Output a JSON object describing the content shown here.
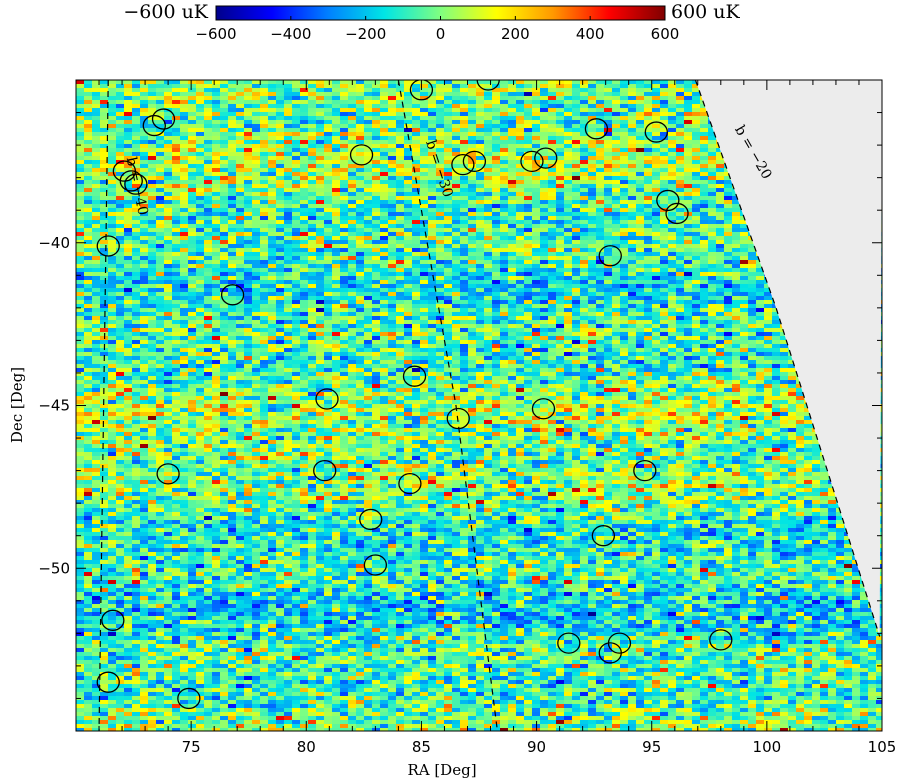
{
  "colorbar": {
    "min_label": "−600 uK",
    "max_label": "600 uK",
    "range": [
      -600,
      600
    ],
    "ticks": [
      "−600",
      "−400",
      "−200",
      "0",
      "200",
      "400",
      "600"
    ],
    "colors": [
      "#00008c",
      "#0000ff",
      "#0080ff",
      "#00e5e5",
      "#80ff80",
      "#ffff00",
      "#ff9900",
      "#ff0000",
      "#800000"
    ]
  },
  "chart_data": {
    "type": "heatmap",
    "title": "",
    "xlabel": "RA [Deg]",
    "ylabel": "Dec [Deg]",
    "xlim": [
      70.0,
      105.0
    ],
    "ylim": [
      -55.0,
      -35.0
    ],
    "x_ticks": [
      75,
      80,
      85,
      90,
      95,
      100,
      105
    ],
    "y_ticks": [
      -40,
      -45,
      -50
    ],
    "x_tick_labels": [
      "75",
      "80",
      "85",
      "90",
      "95",
      "100",
      "105"
    ],
    "y_tick_labels": [
      "−40",
      "−45",
      "−50"
    ],
    "masked_region_color": "#ececec",
    "galactic_latitude_lines": [
      {
        "label": "b = −40",
        "points": [
          [
            71.4,
            -35.0
          ],
          [
            71.1,
            -50.0
          ],
          [
            71.0,
            -55.0
          ]
        ]
      },
      {
        "label": "b = −30",
        "points": [
          [
            84.0,
            -35.0
          ],
          [
            86.5,
            -45.0
          ],
          [
            88.3,
            -55.0
          ]
        ]
      },
      {
        "label": "b = −20",
        "points": [
          [
            96.9,
            -35.0
          ],
          [
            100.4,
            -42.0
          ],
          [
            104.9,
            -52.1
          ]
        ]
      }
    ],
    "source_circles": [
      [
        85.0,
        -35.3
      ],
      [
        87.9,
        -35.0
      ],
      [
        73.8,
        -36.2
      ],
      [
        73.4,
        -36.4
      ],
      [
        92.6,
        -36.5
      ],
      [
        95.2,
        -36.6
      ],
      [
        82.4,
        -37.3
      ],
      [
        87.3,
        -37.5
      ],
      [
        86.8,
        -37.6
      ],
      [
        89.8,
        -37.5
      ],
      [
        90.4,
        -37.4
      ],
      [
        72.1,
        -37.8
      ],
      [
        72.4,
        -38.1
      ],
      [
        72.6,
        -38.2
      ],
      [
        95.7,
        -38.7
      ],
      [
        96.1,
        -39.1
      ],
      [
        71.4,
        -40.1
      ],
      [
        93.2,
        -40.4
      ],
      [
        76.8,
        -41.6
      ],
      [
        84.7,
        -44.1
      ],
      [
        80.9,
        -44.8
      ],
      [
        86.6,
        -45.4
      ],
      [
        90.3,
        -45.1
      ],
      [
        74.0,
        -47.1
      ],
      [
        80.8,
        -47.0
      ],
      [
        94.7,
        -47.0
      ],
      [
        84.5,
        -47.4
      ],
      [
        82.8,
        -48.5
      ],
      [
        92.9,
        -49.0
      ],
      [
        83.0,
        -49.9
      ],
      [
        71.6,
        -51.6
      ],
      [
        91.4,
        -52.3
      ],
      [
        93.6,
        -52.3
      ],
      [
        98.0,
        -52.2
      ],
      [
        93.2,
        -52.6
      ],
      [
        71.4,
        -53.5
      ],
      [
        74.9,
        -54.0
      ]
    ]
  }
}
